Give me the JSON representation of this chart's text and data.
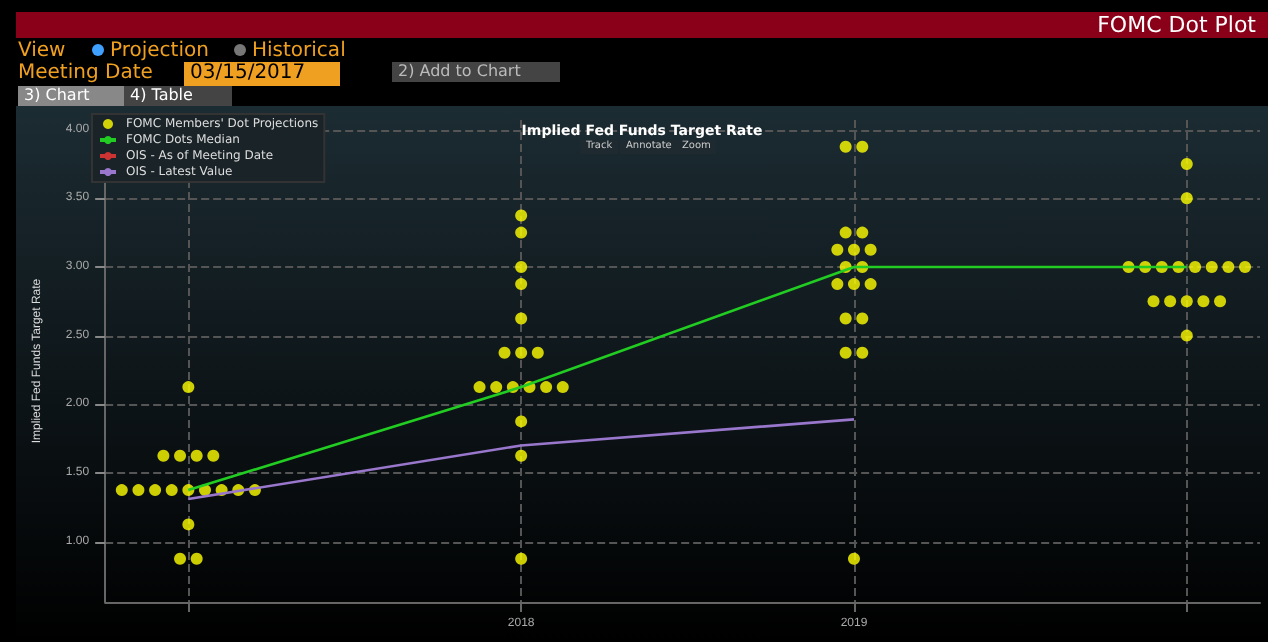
{
  "chart_data": {
    "type": "scatter",
    "title": "Implied Fed Funds Target Rate",
    "ylabel": "Implied Fed Funds Target Rate",
    "annotations": [
      "FOMC Dot Plot",
      "View",
      "Projection",
      "Historical",
      "Meeting Date",
      "03/15/2017",
      "2) Add to Chart",
      "3) Chart",
      "4) Table",
      "Track",
      "Annotate",
      "Zoom"
    ],
    "xlim": [
      2016.75,
      2020.22
    ],
    "xticks": [
      {
        "value": 2017,
        "label": null
      },
      {
        "value": 2018,
        "label": "2018"
      },
      {
        "value": 2019,
        "label": "2019"
      },
      {
        "value": 2020,
        "label": null
      }
    ],
    "ylim": [
      0.56,
      4.07
    ],
    "yticks": [
      {
        "value": 1,
        "label": "1.00"
      },
      {
        "value": 1.5,
        "label": "1.50"
      },
      {
        "value": 2,
        "label": "2.00"
      },
      {
        "value": 2.5,
        "label": "2.50"
      },
      {
        "value": 3,
        "label": "3.00"
      },
      {
        "value": 3.5,
        "label": "3.50"
      },
      {
        "value": 4,
        "label": "4.00"
      }
    ],
    "grid": true,
    "legend": "top left",
    "series": [
      {
        "name": "FOMC Members' Dot Projections",
        "color": "#ffff00",
        "marker": "circle",
        "x": [
          2017,
          2016.925,
          2016.975,
          2017.025,
          2017.075,
          2016.8,
          2016.85,
          2016.9,
          2016.95,
          2017,
          2017.05,
          2017.1,
          2017.15,
          2017.2,
          2017,
          2016.975,
          2017.025,
          2018,
          2018,
          2018,
          2018,
          2018,
          2017.95,
          2018,
          2018.05,
          2017.875,
          2017.925,
          2017.975,
          2018.025,
          2018.075,
          2018.125,
          2018,
          2018,
          2018,
          2018.975,
          2019.025,
          2018.975,
          2019.025,
          2018.95,
          2019,
          2019.05,
          2018.975,
          2019.025,
          2018.95,
          2019,
          2019.05,
          2018.975,
          2019.025,
          2018.975,
          2019.025,
          2019,
          2020,
          2020,
          2019.825,
          2019.875,
          2019.925,
          2019.975,
          2020.025,
          2020.075,
          2020.125,
          2020.175,
          2019.9,
          2019.95,
          2020,
          2020.05,
          2020.1,
          2020
        ],
        "values": [
          2.125,
          1.625,
          1.625,
          1.625,
          1.625,
          1.375,
          1.375,
          1.375,
          1.375,
          1.375,
          1.375,
          1.375,
          1.375,
          1.375,
          1.125,
          0.875,
          0.875,
          3.375,
          3.25,
          3,
          2.875,
          2.625,
          2.375,
          2.375,
          2.375,
          2.125,
          2.125,
          2.125,
          2.125,
          2.125,
          2.125,
          1.875,
          1.625,
          0.875,
          3.875,
          3.875,
          3.25,
          3.25,
          3.125,
          3.125,
          3.125,
          3,
          3,
          2.875,
          2.875,
          2.875,
          2.625,
          2.625,
          2.375,
          2.375,
          0.875,
          3.75,
          3.5,
          3,
          3,
          3,
          3,
          3,
          3,
          3,
          3,
          2.75,
          2.75,
          2.75,
          2.75,
          2.75,
          2.5
        ]
      },
      {
        "name": "FOMC Dots Median",
        "type": "line",
        "color": "#22cc22",
        "marker": "none",
        "x": [
          2017,
          2018,
          2019,
          2020
        ],
        "values": [
          1.375,
          2.125,
          3,
          3
        ]
      },
      {
        "name": "OIS - As of Meeting Date",
        "type": "line",
        "color": "#cc3333",
        "marker": "none"
      },
      {
        "name": "OIS - Latest Value",
        "type": "line",
        "color": "#9977cc",
        "marker": "none",
        "x": [
          2017,
          2018,
          2019
        ],
        "values": [
          1.31,
          1.7,
          1.89
        ]
      }
    ]
  }
}
